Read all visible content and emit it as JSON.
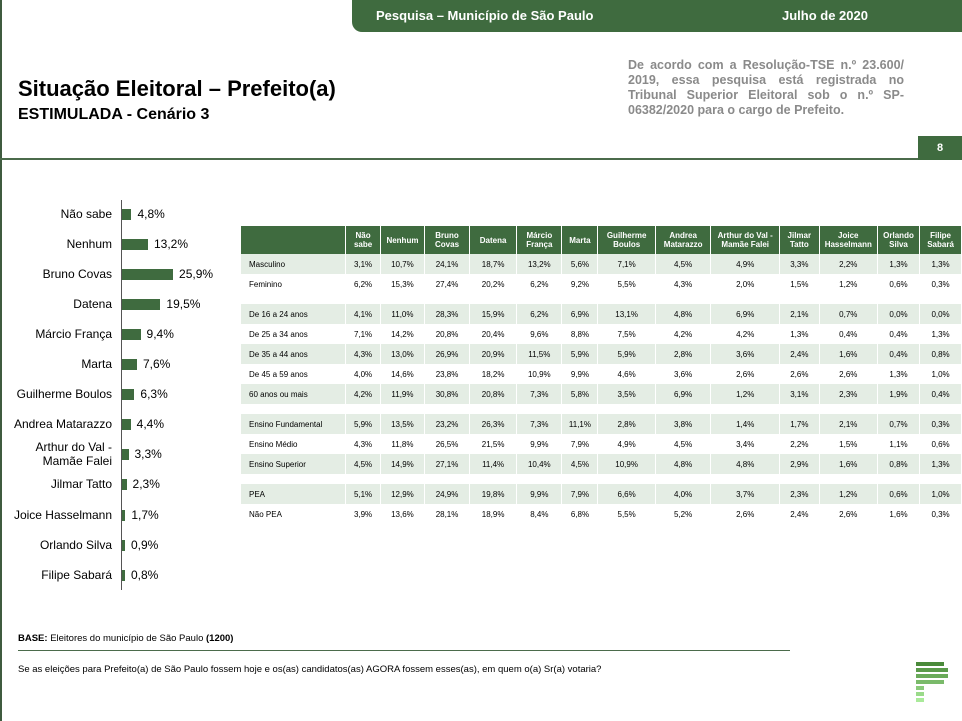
{
  "header": {
    "survey": "Pesquisa – Município de São Paulo",
    "date": "Julho de 2020",
    "page": "8"
  },
  "title": "Situação Eleitoral – Prefeito(a)",
  "subtitle": "ESTIMULADA - Cenário 3",
  "note": "De acordo com a Resolução-TSE n.º 23.600/ 2019, essa pesquisa está registrada no Tribunal Superior Eleitoral sob o n.º SP-06382/2020 para o cargo de Prefeito.",
  "colors": {
    "accent": "#3f6b3f",
    "shade": "#e4ede4"
  },
  "chart_data": {
    "type": "bar",
    "orientation": "horizontal",
    "categories": [
      "Não sabe",
      "Nenhum",
      "Bruno Covas",
      "Datena",
      "Márcio França",
      "Marta",
      "Guilherme Boulos",
      "Andrea Matarazzo",
      "Arthur do Val - Mamãe Falei",
      "Jilmar Tatto",
      "Joice Hasselmann",
      "Orlando Silva",
      "Filipe Sabará"
    ],
    "values": [
      4.8,
      13.2,
      25.9,
      19.5,
      9.4,
      7.6,
      6.3,
      4.4,
      3.3,
      2.3,
      1.7,
      0.9,
      0.8
    ],
    "labels": [
      "4,8%",
      "13,2%",
      "25,9%",
      "19,5%",
      "9,4%",
      "7,6%",
      "6,3%",
      "4,4%",
      "3,3%",
      "2,3%",
      "1,7%",
      "0,9%",
      "0,8%"
    ]
  },
  "table": {
    "columns": [
      "Não sabe",
      "Nenhum",
      "Bruno Covas",
      "Datena",
      "Márcio França",
      "Marta",
      "Guilherme Boulos",
      "Andrea Matarazzo",
      "Arthur do Val - Mamãe Falei",
      "Jilmar Tatto",
      "Joice Hasselmann",
      "Orlando Silva",
      "Filipe Sabará"
    ],
    "groups": [
      [
        {
          "label": "Masculino",
          "values": [
            "3,1%",
            "10,7%",
            "24,1%",
            "18,7%",
            "13,2%",
            "5,6%",
            "7,1%",
            "4,5%",
            "4,9%",
            "3,3%",
            "2,2%",
            "1,3%",
            "1,3%"
          ]
        },
        {
          "label": "Feminino",
          "values": [
            "6,2%",
            "15,3%",
            "27,4%",
            "20,2%",
            "6,2%",
            "9,2%",
            "5,5%",
            "4,3%",
            "2,0%",
            "1,5%",
            "1,2%",
            "0,6%",
            "0,3%"
          ]
        }
      ],
      [
        {
          "label": "De 16 a 24 anos",
          "values": [
            "4,1%",
            "11,0%",
            "28,3%",
            "15,9%",
            "6,2%",
            "6,9%",
            "13,1%",
            "4,8%",
            "6,9%",
            "2,1%",
            "0,7%",
            "0,0%",
            "0,0%"
          ]
        },
        {
          "label": "De 25 a 34 anos",
          "values": [
            "7,1%",
            "14,2%",
            "20,8%",
            "20,4%",
            "9,6%",
            "8,8%",
            "7,5%",
            "4,2%",
            "4,2%",
            "1,3%",
            "0,4%",
            "0,4%",
            "1,3%"
          ]
        },
        {
          "label": "De 35 a 44 anos",
          "values": [
            "4,3%",
            "13,0%",
            "26,9%",
            "20,9%",
            "11,5%",
            "5,9%",
            "5,9%",
            "2,8%",
            "3,6%",
            "2,4%",
            "1,6%",
            "0,4%",
            "0,8%"
          ]
        },
        {
          "label": "De 45 a 59 anos",
          "values": [
            "4,0%",
            "14,6%",
            "23,8%",
            "18,2%",
            "10,9%",
            "9,9%",
            "4,6%",
            "3,6%",
            "2,6%",
            "2,6%",
            "2,6%",
            "1,3%",
            "1,0%"
          ]
        },
        {
          "label": "60 anos ou mais",
          "values": [
            "4,2%",
            "11,9%",
            "30,8%",
            "20,8%",
            "7,3%",
            "5,8%",
            "3,5%",
            "6,9%",
            "1,2%",
            "3,1%",
            "2,3%",
            "1,9%",
            "0,4%"
          ]
        }
      ],
      [
        {
          "label": "Ensino Fundamental",
          "values": [
            "5,9%",
            "13,5%",
            "23,2%",
            "26,3%",
            "7,3%",
            "11,1%",
            "2,8%",
            "3,8%",
            "1,4%",
            "1,7%",
            "2,1%",
            "0,7%",
            "0,3%"
          ]
        },
        {
          "label": "Ensino Médio",
          "values": [
            "4,3%",
            "11,8%",
            "26,5%",
            "21,5%",
            "9,9%",
            "7,9%",
            "4,9%",
            "4,5%",
            "3,4%",
            "2,2%",
            "1,5%",
            "1,1%",
            "0,6%"
          ]
        },
        {
          "label": "Ensino Superior",
          "values": [
            "4,5%",
            "14,9%",
            "27,1%",
            "11,4%",
            "10,4%",
            "4,5%",
            "10,9%",
            "4,8%",
            "4,8%",
            "2,9%",
            "1,6%",
            "0,8%",
            "1,3%"
          ]
        }
      ],
      [
        {
          "label": "PEA",
          "values": [
            "5,1%",
            "12,9%",
            "24,9%",
            "19,8%",
            "9,9%",
            "7,9%",
            "6,6%",
            "4,0%",
            "3,7%",
            "2,3%",
            "1,2%",
            "0,6%",
            "1,0%"
          ]
        },
        {
          "label": "Não PEA",
          "values": [
            "3,9%",
            "13,6%",
            "28,1%",
            "18,9%",
            "8,4%",
            "6,8%",
            "5,5%",
            "5,2%",
            "2,6%",
            "2,4%",
            "2,6%",
            "1,6%",
            "0,3%"
          ]
        }
      ]
    ]
  },
  "footer": {
    "base_label": "BASE:",
    "base_text": " Eleitores do município de São Paulo ",
    "base_count": "(1200)",
    "question": "Se as eleições para Prefeito(a) de São Paulo fossem hoje e os(as) candidatos(as) AGORA fossem esses(as), em quem o(a) Sr(a) votaria?"
  }
}
